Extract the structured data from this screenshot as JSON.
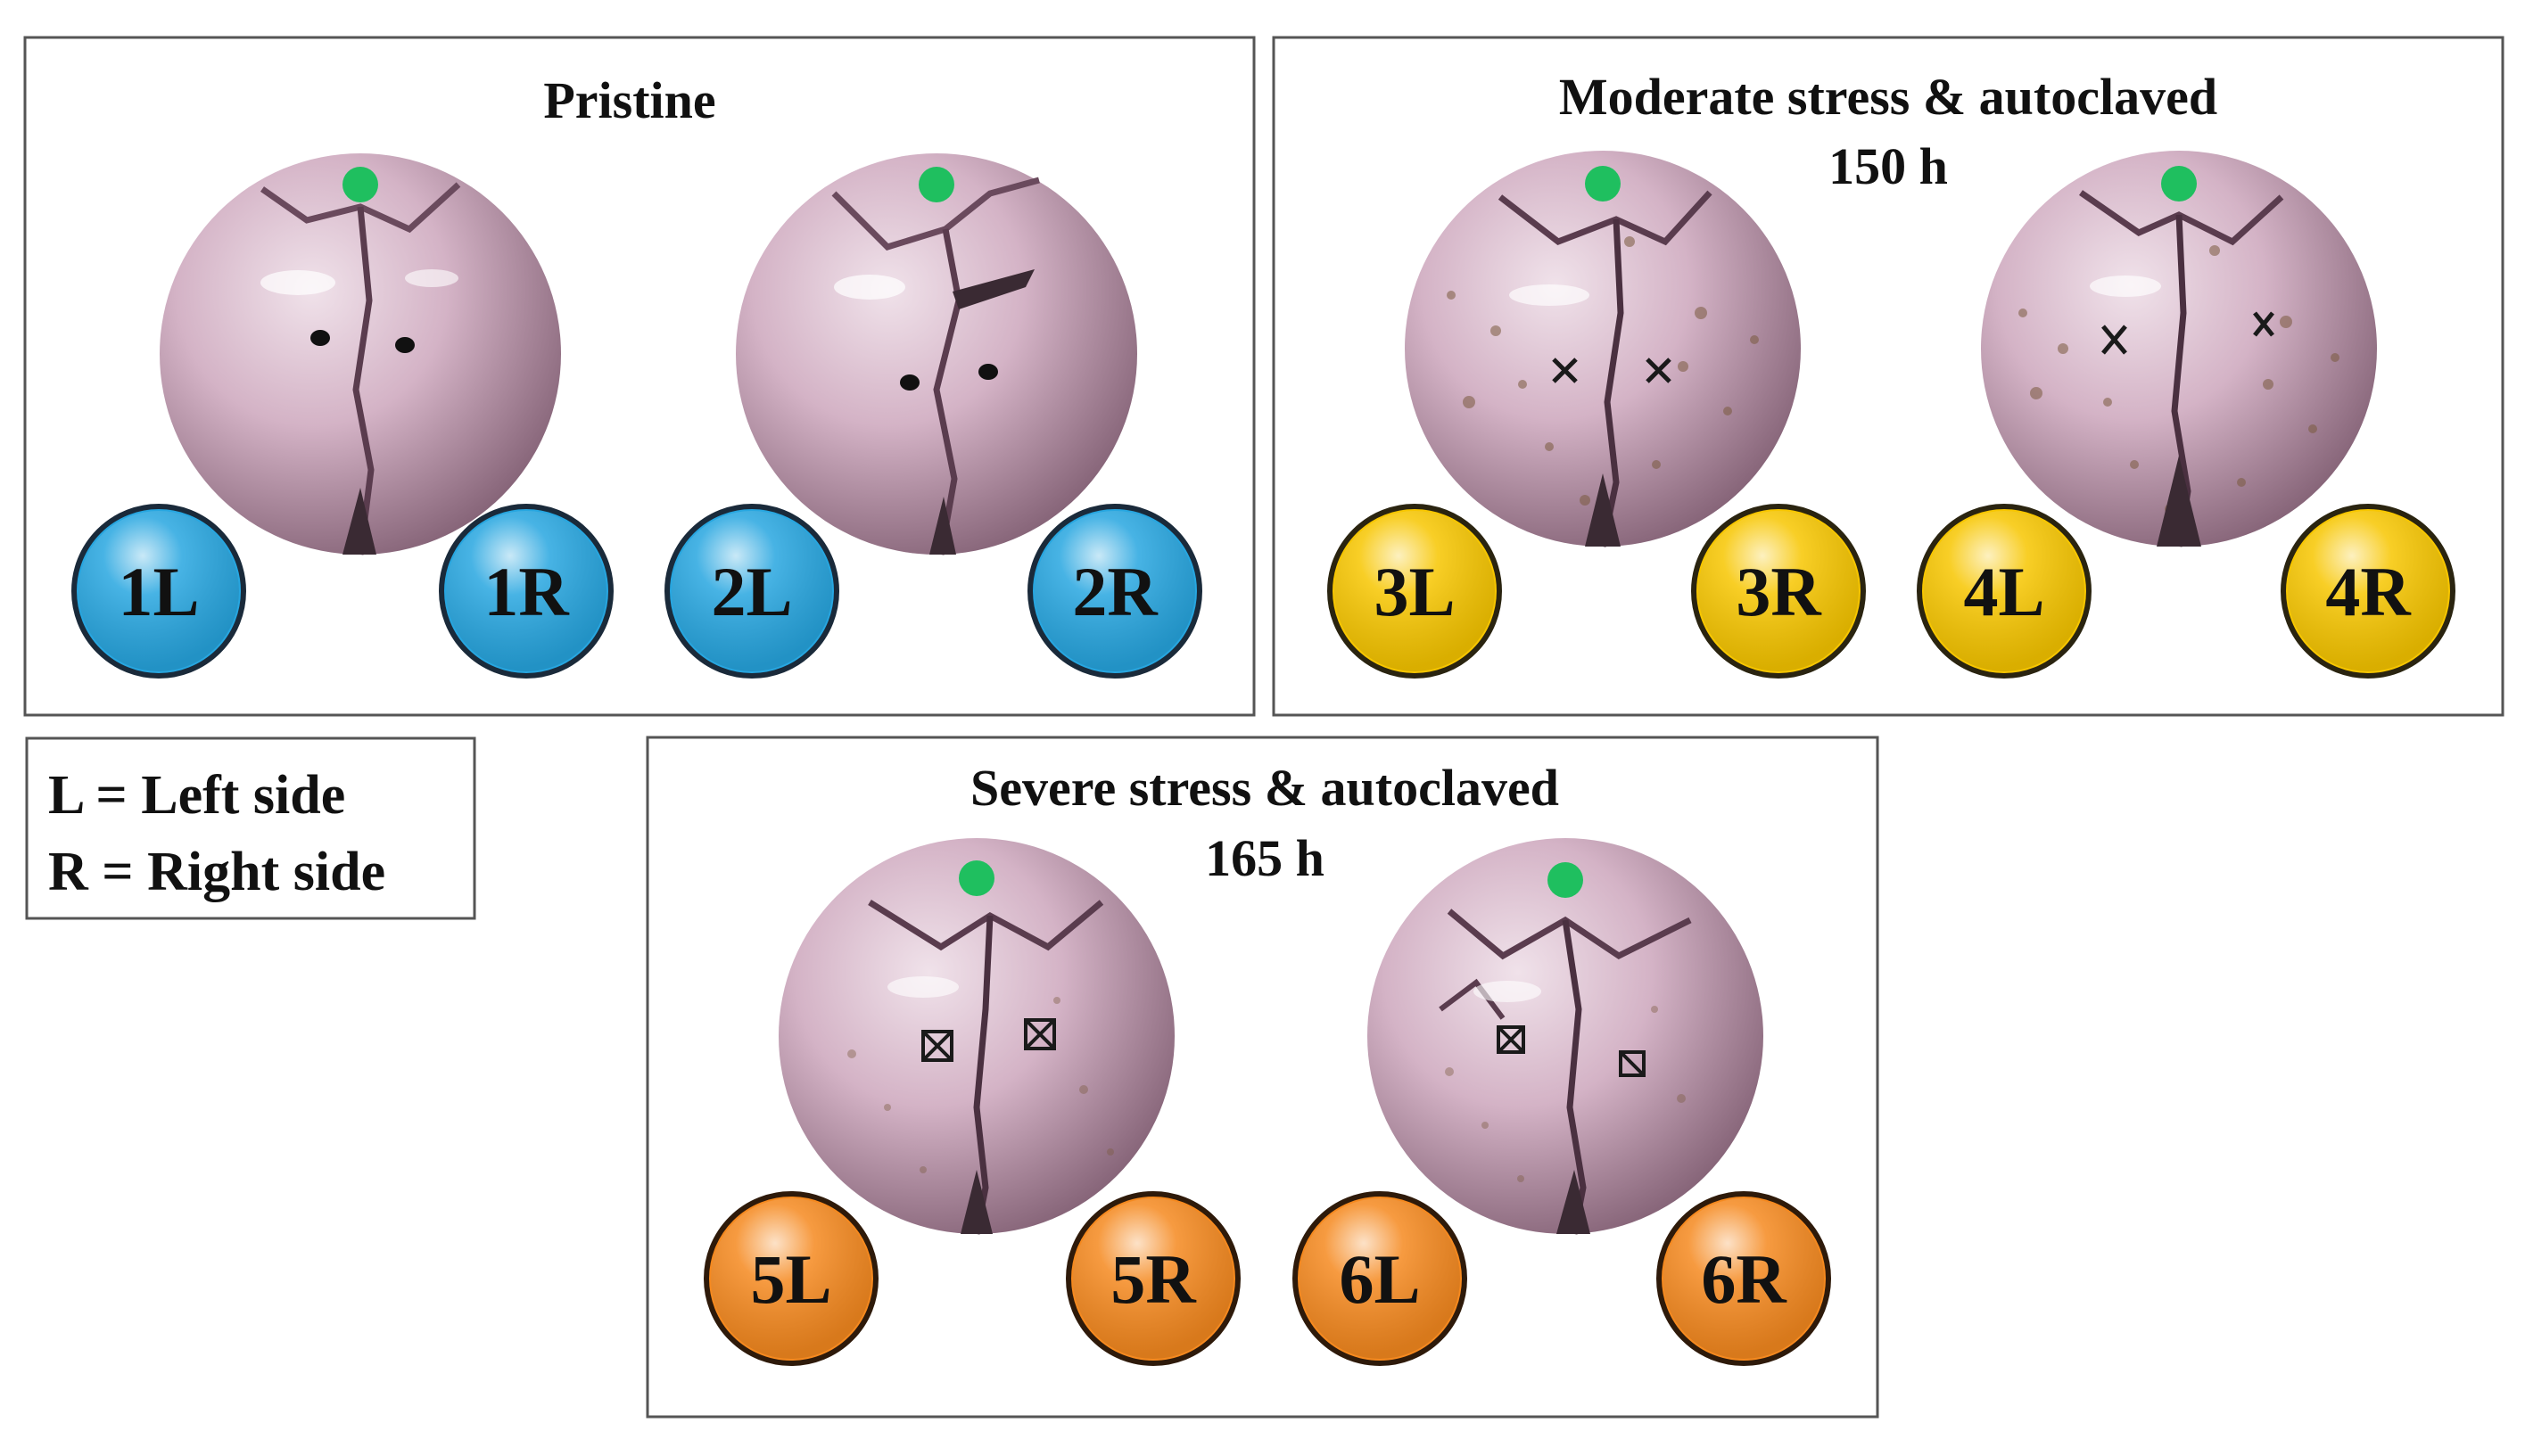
{
  "panels": [
    {
      "id": "pristine",
      "title_lines": [
        "Pristine"
      ],
      "badge_color": "#27a6e0",
      "balls": [
        {
          "left": "1L",
          "right": "1R",
          "marks": "dot"
        },
        {
          "left": "2L",
          "right": "2R",
          "marks": "dot"
        }
      ]
    },
    {
      "id": "moderate",
      "title_lines": [
        "Moderate stress & autoclaved",
        "150 h"
      ],
      "badge_color": "#f7c600",
      "balls": [
        {
          "left": "3L",
          "right": "3R",
          "marks": "cross"
        },
        {
          "left": "4L",
          "right": "4R",
          "marks": "cross"
        }
      ]
    },
    {
      "id": "severe",
      "title_lines": [
        "Severe stress & autoclaved",
        "165 h"
      ],
      "badge_color": "#f5891f",
      "balls": [
        {
          "left": "5L",
          "right": "5R",
          "marks": "box"
        },
        {
          "left": "6L",
          "right": "6R",
          "marks": "box"
        }
      ]
    }
  ],
  "legend": {
    "lines": [
      "L = Left side",
      "R = Right side"
    ]
  },
  "colors": {
    "ball": "#d6b8cb",
    "ball_dark": "#8e6b80",
    "green_dot": "#1fbf5f",
    "frame": "#555555"
  }
}
